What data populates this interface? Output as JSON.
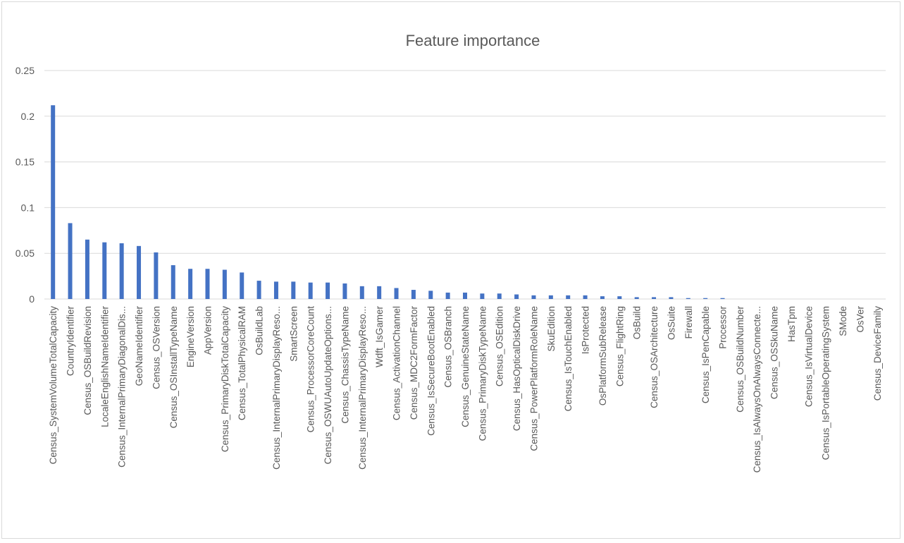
{
  "chart_data": {
    "type": "bar",
    "title": "Feature importance",
    "xlabel": "",
    "ylabel": "",
    "ylim": [
      0,
      0.25
    ],
    "yticks": [
      "0",
      "0.05",
      "0.1",
      "0.15",
      "0.2",
      "0.25"
    ],
    "grid": true,
    "legend": "none",
    "colors": {
      "bar": "#4472c4",
      "grid": "#d9d9d9",
      "text": "#595959"
    },
    "categories": [
      "Census_SystemVolumeTotalCapacity",
      "CountryIdentifier",
      "Census_OSBuildRevision",
      "LocaleEnglishNameIdentifier",
      "Census_InternalPrimaryDiagonalDis...",
      "GeoNameIdentifier",
      "Census_OSVersion",
      "Census_OSInstallTypeName",
      "EngineVersion",
      "AppVersion",
      "Census_PrimaryDiskTotalCapacity",
      "Census_TotalPhysicalRAM",
      "OsBuildLab",
      "Census_InternalPrimaryDisplayReso...",
      "SmartScreen",
      "Census_ProcessorCoreCount",
      "Census_OSWUAutoUpdateOptions...",
      "Census_ChassisTypeName",
      "Census_InternalPrimaryDisplayReso...",
      "Wdft_IsGamer",
      "Census_ActivationChannel",
      "Census_MDC2FormFactor",
      "Census_IsSecureBootEnabled",
      "Census_OSBranch",
      "Census_GenuineStateName",
      "Census_PrimaryDiskTypeName",
      "Census_OSEdition",
      "Census_HasOpticalDiskDrive",
      "Census_PowerPlatformRoleName",
      "SkuEdition",
      "Census_IsTouchEnabled",
      "IsProtected",
      "OsPlatformSubRelease",
      "Census_FlightRing",
      "OsBuild",
      "Census_OSArchitecture",
      "OsSuite",
      "Firewall",
      "Census_IsPenCapable",
      "Processor",
      "Census_OSBuildNumber",
      "Census_IsAlwaysOnAlwaysConnecte...",
      "Census_OSSkuName",
      "HasTpm",
      "Census_IsVirtualDevice",
      "Census_IsPortableOperatingSystem",
      "SMode",
      "OsVer",
      "Census_DeviceFamily"
    ],
    "values": [
      0.212,
      0.083,
      0.065,
      0.062,
      0.061,
      0.058,
      0.051,
      0.037,
      0.033,
      0.033,
      0.032,
      0.029,
      0.02,
      0.019,
      0.019,
      0.018,
      0.018,
      0.017,
      0.014,
      0.014,
      0.012,
      0.01,
      0.009,
      0.007,
      0.007,
      0.006,
      0.006,
      0.005,
      0.004,
      0.004,
      0.004,
      0.004,
      0.003,
      0.003,
      0.002,
      0.002,
      0.002,
      0.001,
      0.001,
      0.001,
      0.0,
      0.0,
      0.0,
      0.0,
      0.0,
      0.0,
      0.0,
      0.0,
      0.0
    ]
  }
}
